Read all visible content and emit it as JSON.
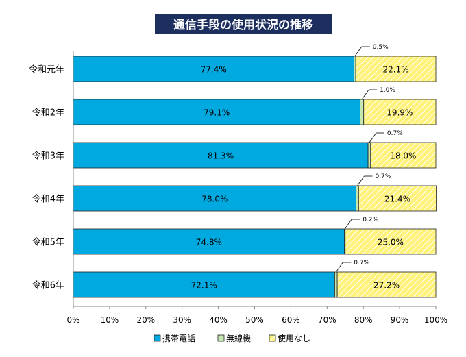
{
  "chart_data": {
    "type": "bar",
    "orientation": "horizontal",
    "stacked": "100%",
    "title": "通信手段の使用状況の推移",
    "categories": [
      "令和元年",
      "令和2年",
      "令和3年",
      "令和4年",
      "令和5年",
      "令和6年"
    ],
    "series": [
      {
        "name": "携帯電話",
        "color": "#00a9e0",
        "values": [
          77.4,
          79.1,
          81.3,
          78.0,
          74.8,
          72.1
        ],
        "labels": [
          "77.4%",
          "79.1%",
          "81.3%",
          "78.0%",
          "74.8%",
          "72.1%"
        ]
      },
      {
        "name": "無線機",
        "color": "#c6e8b0",
        "values": [
          0.5,
          1.0,
          0.7,
          0.7,
          0.2,
          0.7
        ],
        "labels": [
          "0.5%",
          "1.0%",
          "0.7%",
          "0.7%",
          "0.2%",
          "0.7%"
        ]
      },
      {
        "name": "使用なし",
        "color": "#fff27a",
        "values": [
          22.1,
          19.9,
          18.0,
          21.4,
          25.0,
          27.2
        ],
        "labels": [
          "22.1%",
          "19.9%",
          "18.0%",
          "21.4%",
          "25.0%",
          "27.2%"
        ]
      }
    ],
    "xlim": [
      0,
      100
    ],
    "xticks": [
      "0%",
      "10%",
      "20%",
      "30%",
      "40%",
      "50%",
      "60%",
      "70%",
      "80%",
      "90%",
      "100%"
    ],
    "legend_position": "bottom",
    "grid": false
  }
}
